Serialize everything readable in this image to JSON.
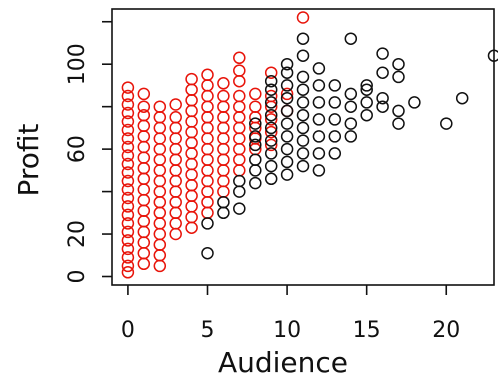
{
  "chart_data": {
    "type": "scatter",
    "xlabel": "Audience",
    "ylabel": "Profit",
    "xlim": [
      -1,
      23
    ],
    "ylim": [
      -4,
      126
    ],
    "x_ticks": [
      0,
      5,
      10,
      15,
      20
    ],
    "y_ticks": [
      0,
      20,
      60,
      100
    ],
    "y_minor_ticks": [
      0,
      20,
      40,
      60,
      80,
      100,
      120
    ],
    "grid": false,
    "legend": "none",
    "series": [
      {
        "color": "#e8140a",
        "points": [
          [
            0,
            2
          ],
          [
            0,
            5
          ],
          [
            0,
            9
          ],
          [
            0,
            13
          ],
          [
            0,
            17
          ],
          [
            0,
            21
          ],
          [
            0,
            25
          ],
          [
            0,
            29
          ],
          [
            0,
            33
          ],
          [
            0,
            37
          ],
          [
            0,
            41
          ],
          [
            0,
            45
          ],
          [
            0,
            49
          ],
          [
            0,
            53
          ],
          [
            0,
            57
          ],
          [
            0,
            61
          ],
          [
            0,
            65
          ],
          [
            0,
            69
          ],
          [
            0,
            73
          ],
          [
            0,
            77
          ],
          [
            0,
            81
          ],
          [
            0,
            85
          ],
          [
            0,
            89
          ],
          [
            1,
            6
          ],
          [
            1,
            11
          ],
          [
            1,
            16
          ],
          [
            1,
            21
          ],
          [
            1,
            26
          ],
          [
            1,
            31
          ],
          [
            1,
            36
          ],
          [
            1,
            41
          ],
          [
            1,
            46
          ],
          [
            1,
            51
          ],
          [
            1,
            56
          ],
          [
            1,
            61
          ],
          [
            1,
            66
          ],
          [
            1,
            71
          ],
          [
            1,
            76
          ],
          [
            1,
            80
          ],
          [
            1,
            86
          ],
          [
            2,
            5
          ],
          [
            2,
            10
          ],
          [
            2,
            15
          ],
          [
            2,
            20
          ],
          [
            2,
            25
          ],
          [
            2,
            30
          ],
          [
            2,
            35
          ],
          [
            2,
            40
          ],
          [
            2,
            45
          ],
          [
            2,
            50
          ],
          [
            2,
            55
          ],
          [
            2,
            60
          ],
          [
            2,
            65
          ],
          [
            2,
            70
          ],
          [
            2,
            75
          ],
          [
            2,
            80
          ],
          [
            3,
            20
          ],
          [
            3,
            25
          ],
          [
            3,
            30
          ],
          [
            3,
            35
          ],
          [
            3,
            40
          ],
          [
            3,
            45
          ],
          [
            3,
            50
          ],
          [
            3,
            55
          ],
          [
            3,
            60
          ],
          [
            3,
            65
          ],
          [
            3,
            70
          ],
          [
            3,
            75
          ],
          [
            3,
            81
          ],
          [
            4,
            23
          ],
          [
            4,
            28
          ],
          [
            4,
            33
          ],
          [
            4,
            38
          ],
          [
            4,
            43
          ],
          [
            4,
            48
          ],
          [
            4,
            53
          ],
          [
            4,
            58
          ],
          [
            4,
            63
          ],
          [
            4,
            68
          ],
          [
            4,
            73
          ],
          [
            4,
            78
          ],
          [
            4,
            83
          ],
          [
            4,
            88
          ],
          [
            4,
            93
          ],
          [
            5,
            30
          ],
          [
            5,
            35
          ],
          [
            5,
            40
          ],
          [
            5,
            45
          ],
          [
            5,
            50
          ],
          [
            5,
            55
          ],
          [
            5,
            60
          ],
          [
            5,
            65
          ],
          [
            5,
            70
          ],
          [
            5,
            75
          ],
          [
            5,
            80
          ],
          [
            5,
            85
          ],
          [
            5,
            90
          ],
          [
            5,
            95
          ],
          [
            6,
            40
          ],
          [
            6,
            45
          ],
          [
            6,
            50
          ],
          [
            6,
            55
          ],
          [
            6,
            60
          ],
          [
            6,
            65
          ],
          [
            6,
            70
          ],
          [
            6,
            75
          ],
          [
            6,
            80
          ],
          [
            6,
            85
          ],
          [
            6,
            91
          ],
          [
            7,
            50
          ],
          [
            7,
            55
          ],
          [
            7,
            60
          ],
          [
            7,
            65
          ],
          [
            7,
            70
          ],
          [
            7,
            75
          ],
          [
            7,
            80
          ],
          [
            7,
            85
          ],
          [
            7,
            92
          ],
          [
            7,
            97
          ],
          [
            7,
            103
          ],
          [
            8,
            60
          ],
          [
            8,
            65
          ],
          [
            8,
            70
          ],
          [
            8,
            75
          ],
          [
            8,
            80
          ],
          [
            8,
            86
          ],
          [
            9,
            62
          ],
          [
            9,
            68
          ],
          [
            9,
            74
          ],
          [
            9,
            80
          ],
          [
            9,
            85
          ],
          [
            9,
            96
          ],
          [
            10,
            78
          ],
          [
            10,
            86
          ],
          [
            11,
            122
          ]
        ]
      },
      {
        "color": "#111111",
        "points": [
          [
            5,
            11
          ],
          [
            5,
            25
          ],
          [
            6,
            30
          ],
          [
            6,
            35
          ],
          [
            7,
            32
          ],
          [
            7,
            40
          ],
          [
            7,
            45
          ],
          [
            8,
            44
          ],
          [
            8,
            50
          ],
          [
            8,
            55
          ],
          [
            8,
            62
          ],
          [
            8,
            66
          ],
          [
            8,
            72
          ],
          [
            9,
            46
          ],
          [
            9,
            52
          ],
          [
            9,
            58
          ],
          [
            9,
            64
          ],
          [
            9,
            70
          ],
          [
            9,
            76
          ],
          [
            9,
            82
          ],
          [
            9,
            88
          ],
          [
            9,
            92
          ],
          [
            10,
            48
          ],
          [
            10,
            54
          ],
          [
            10,
            60
          ],
          [
            10,
            66
          ],
          [
            10,
            72
          ],
          [
            10,
            78
          ],
          [
            10,
            84
          ],
          [
            10,
            90
          ],
          [
            10,
            96
          ],
          [
            10,
            100
          ],
          [
            11,
            52
          ],
          [
            11,
            58
          ],
          [
            11,
            64
          ],
          [
            11,
            70
          ],
          [
            11,
            76
          ],
          [
            11,
            82
          ],
          [
            11,
            88
          ],
          [
            11,
            94
          ],
          [
            11,
            104
          ],
          [
            11,
            112
          ],
          [
            12,
            50
          ],
          [
            12,
            58
          ],
          [
            12,
            66
          ],
          [
            12,
            74
          ],
          [
            12,
            82
          ],
          [
            12,
            90
          ],
          [
            12,
            98
          ],
          [
            13,
            58
          ],
          [
            13,
            66
          ],
          [
            13,
            74
          ],
          [
            13,
            82
          ],
          [
            13,
            90
          ],
          [
            14,
            66
          ],
          [
            14,
            72
          ],
          [
            14,
            80
          ],
          [
            14,
            86
          ],
          [
            14,
            112
          ],
          [
            15,
            76
          ],
          [
            15,
            82
          ],
          [
            15,
            88
          ],
          [
            15,
            90
          ],
          [
            16,
            80
          ],
          [
            16,
            84
          ],
          [
            16,
            96
          ],
          [
            16,
            105
          ],
          [
            17,
            72
          ],
          [
            17,
            78
          ],
          [
            17,
            94
          ],
          [
            17,
            100
          ],
          [
            18,
            82
          ],
          [
            20,
            72
          ],
          [
            21,
            84
          ],
          [
            23,
            104
          ]
        ]
      }
    ]
  }
}
